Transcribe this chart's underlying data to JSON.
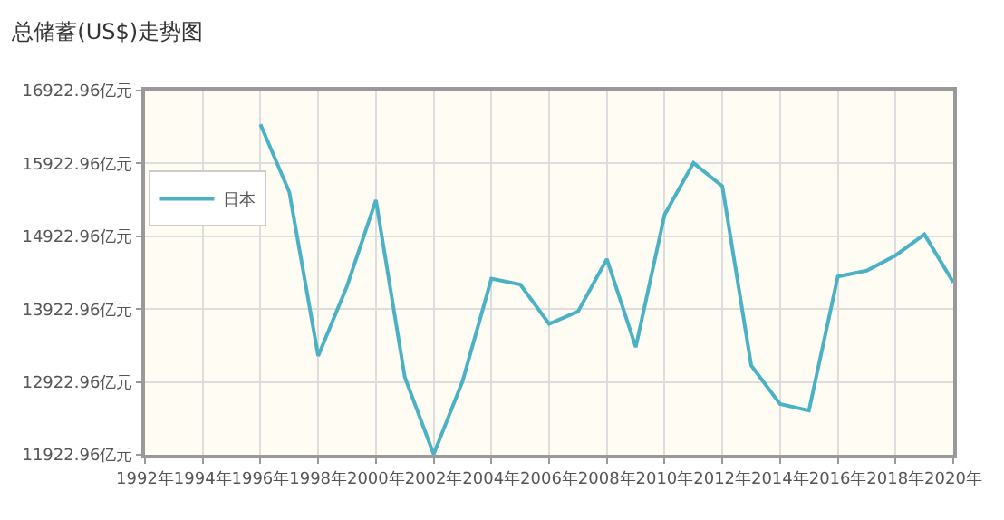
{
  "chart_data": {
    "type": "line",
    "title": "总储蓄(US$)走势图",
    "x": [
      1996,
      1997,
      1998,
      1999,
      2000,
      2001,
      2002,
      2003,
      2004,
      2005,
      2006,
      2007,
      2008,
      2009,
      2010,
      2011,
      2012,
      2013,
      2014,
      2015,
      2016,
      2017,
      2018,
      2019,
      2020
    ],
    "series": [
      {
        "name": "日本",
        "color": "#4bb2c5",
        "values": [
          16460,
          15530,
          13280,
          14240,
          15420,
          12990,
          11930,
          12930,
          14340,
          14260,
          13720,
          13890,
          14610,
          13400,
          15220,
          15930,
          15610,
          13150,
          12620,
          12530,
          14370,
          14450,
          14660,
          14950,
          14290
        ]
      }
    ],
    "xlim": [
      1992,
      2020
    ],
    "xticks": [
      {
        "value": 1992,
        "label": "1992年"
      },
      {
        "value": 1994,
        "label": "1994年"
      },
      {
        "value": 1996,
        "label": "1996年"
      },
      {
        "value": 1998,
        "label": "1998年"
      },
      {
        "value": 2000,
        "label": "2000年"
      },
      {
        "value": 2002,
        "label": "2002年"
      },
      {
        "value": 2004,
        "label": "2004年"
      },
      {
        "value": 2006,
        "label": "2006年"
      },
      {
        "value": 2008,
        "label": "2008年"
      },
      {
        "value": 2010,
        "label": "2010年"
      },
      {
        "value": 2012,
        "label": "2012年"
      },
      {
        "value": 2014,
        "label": "2014年"
      },
      {
        "value": 2016,
        "label": "2016年"
      },
      {
        "value": 2018,
        "label": "2018年"
      },
      {
        "value": 2020,
        "label": "2020年"
      }
    ],
    "ylim": [
      11922.96,
      16922.96
    ],
    "yticks": [
      {
        "value": 11922.96,
        "label": "11922.96亿元"
      },
      {
        "value": 12922.96,
        "label": "12922.96亿元"
      },
      {
        "value": 13922.96,
        "label": "13922.96亿元"
      },
      {
        "value": 14922.96,
        "label": "14922.96亿元"
      },
      {
        "value": 15922.96,
        "label": "15922.96亿元"
      },
      {
        "value": 16922.96,
        "label": "16922.96亿元"
      }
    ],
    "grid": true,
    "legend": "top left",
    "marker": "none",
    "line_style": "solid"
  }
}
